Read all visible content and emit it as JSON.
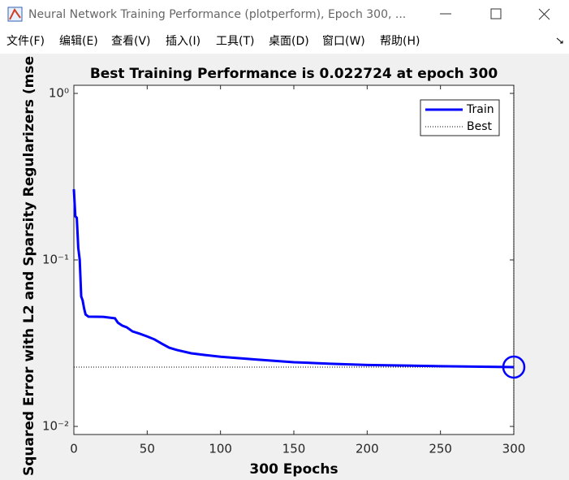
{
  "window": {
    "title": "Neural Network Training Performance (plotperform), Epoch 300, ...",
    "menu": [
      "文件(F)",
      "编辑(E)",
      "查看(V)",
      "插入(I)",
      "工具(T)",
      "桌面(D)",
      "窗口(W)",
      "帮助(H)"
    ]
  },
  "chart_data": {
    "type": "line",
    "title": "Best Training Performance is 0.022724 at epoch 300",
    "x_label": "300 Epochs",
    "y_label": "Squared Error with L2 and Sparsity Regularizers  (mse",
    "x": [
      0,
      1,
      2,
      3,
      4,
      5,
      6,
      7,
      8,
      10,
      20,
      28,
      30,
      33,
      36,
      40,
      45,
      50,
      55,
      60,
      65,
      70,
      80,
      90,
      100,
      125,
      150,
      175,
      200,
      250,
      300
    ],
    "series": [
      {
        "name": "Train",
        "color": "#0000ff",
        "values": [
          0.266,
          0.183,
          0.179,
          0.118,
          0.1,
          0.0604,
          0.057,
          0.051,
          0.047,
          0.0456,
          0.0455,
          0.0446,
          0.042,
          0.0403,
          0.0394,
          0.0372,
          0.036,
          0.0347,
          0.0333,
          0.0314,
          0.0297,
          0.0288,
          0.0275,
          0.0268,
          0.0262,
          0.0252,
          0.0243,
          0.0238,
          0.0234,
          0.023,
          0.022724
        ]
      },
      {
        "name": "Best",
        "color": "#000000"
      }
    ],
    "best_epoch": 300,
    "best_value": 0.022724,
    "xlim": [
      0,
      300
    ],
    "xticks": [
      0,
      50,
      100,
      150,
      200,
      250,
      300
    ],
    "ylim": [
      0.00894,
      1.119
    ],
    "log_y": true,
    "yticks": [
      {
        "value": 0.01,
        "label": "10⁻²"
      },
      {
        "value": 0.1,
        "label": "10⁻¹"
      },
      {
        "value": 1,
        "label": "10⁰"
      }
    ],
    "legend": "top-right"
  }
}
